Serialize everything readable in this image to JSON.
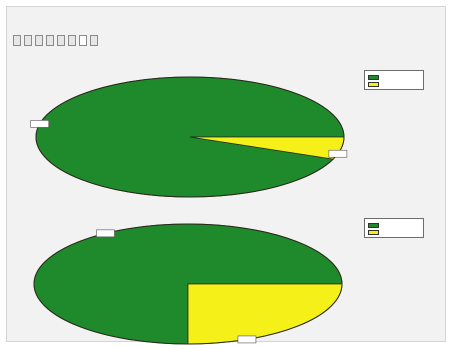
{
  "window": {
    "title": "",
    "clock": ""
  },
  "tabs": [
    {
      "label": "",
      "active": false
    },
    {
      "label": "",
      "active": false
    },
    {
      "label": "",
      "active": false
    },
    {
      "label": "",
      "active": false
    },
    {
      "label": "",
      "active": false
    },
    {
      "label": "",
      "active": false
    },
    {
      "label": "",
      "active": true
    },
    {
      "label": "",
      "active": false
    }
  ],
  "view_subtitle": "",
  "colors": {
    "slice_primary": "#1f8a2c",
    "slice_secondary": "#f4f018",
    "outline": "#2a2a1a",
    "background": "#f2f2f2"
  },
  "chart_data": [
    {
      "type": "pie",
      "title": "",
      "slices": [
        {
          "label": "",
          "value": 94,
          "color": "#1f8a2c",
          "value_label": ""
        },
        {
          "label": "",
          "value": 6,
          "color": "#f4f018",
          "value_label": ""
        }
      ],
      "legend": "right"
    },
    {
      "type": "pie",
      "title": "",
      "slices": [
        {
          "label": "",
          "value": 75,
          "color": "#1f8a2c",
          "value_label": ""
        },
        {
          "label": "",
          "value": 25,
          "color": "#f4f018",
          "value_label": ""
        }
      ],
      "legend": "right"
    }
  ]
}
